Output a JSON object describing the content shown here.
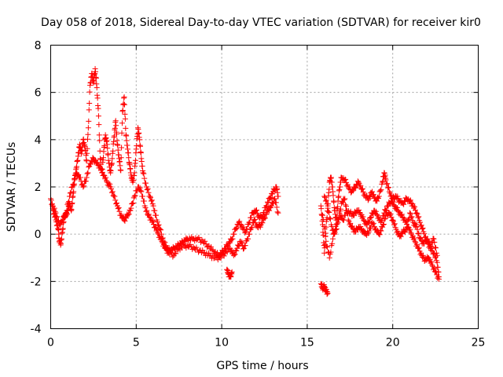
{
  "chart_data": {
    "type": "scatter",
    "title": "Day 058 of 2018, Sidereal Day-to-day VTEC variation (SDTVAR) for receiver kir0",
    "xlabel": "GPS time / hours",
    "ylabel": "SDTVAR / TECUs",
    "xlim": [
      0,
      25
    ],
    "ylim": [
      -4,
      8
    ],
    "xticks": [
      0,
      5,
      10,
      15,
      20,
      25
    ],
    "yticks": [
      -4,
      -2,
      0,
      2,
      4,
      6,
      8
    ],
    "grid": true,
    "marker": "+",
    "color": "#ff0000",
    "series": [
      {
        "name": "SDTVAR",
        "segments": [
          [
            [
              0.0,
              1.5
            ],
            [
              0.15,
              1.0
            ],
            [
              0.3,
              0.6
            ],
            [
              0.45,
              0.2
            ],
            [
              0.5,
              -0.3
            ],
            [
              0.6,
              -0.4
            ],
            [
              0.7,
              0.2
            ],
            [
              0.8,
              0.8
            ],
            [
              0.9,
              0.8
            ],
            [
              1.0,
              1.0
            ],
            [
              1.1,
              1.3
            ],
            [
              1.2,
              1.0
            ],
            [
              1.3,
              1.6
            ],
            [
              1.4,
              2.3
            ],
            [
              1.5,
              2.8
            ],
            [
              1.6,
              3.3
            ],
            [
              1.7,
              3.8
            ],
            [
              1.8,
              3.4
            ],
            [
              1.9,
              4.0
            ],
            [
              2.0,
              3.7
            ],
            [
              2.1,
              3.1
            ],
            [
              2.2,
              4.5
            ],
            [
              2.3,
              6.3
            ],
            [
              2.4,
              6.8
            ],
            [
              2.5,
              6.4
            ],
            [
              2.6,
              7.0
            ],
            [
              2.7,
              6.2
            ],
            [
              2.8,
              5.0
            ],
            [
              2.9,
              3.2
            ],
            [
              3.0,
              2.6
            ],
            [
              3.1,
              3.5
            ],
            [
              3.2,
              4.2
            ],
            [
              3.3,
              3.8
            ],
            [
              3.4,
              3.0
            ],
            [
              3.5,
              2.6
            ],
            [
              3.6,
              3.2
            ],
            [
              3.7,
              4.1
            ],
            [
              3.8,
              4.8
            ],
            [
              3.9,
              3.8
            ],
            [
              4.0,
              3.2
            ],
            [
              4.1,
              2.7
            ],
            [
              4.2,
              5.2
            ],
            [
              4.3,
              5.8
            ],
            [
              4.4,
              4.2
            ],
            [
              4.5,
              3.6
            ],
            [
              4.6,
              3.0
            ],
            [
              4.7,
              2.5
            ],
            [
              4.8,
              2.2
            ],
            [
              4.9,
              2.6
            ],
            [
              5.0,
              3.6
            ],
            [
              5.1,
              4.5
            ],
            [
              5.2,
              4.0
            ],
            [
              5.3,
              3.2
            ],
            [
              5.4,
              2.6
            ],
            [
              5.6,
              2.0
            ],
            [
              5.8,
              1.6
            ],
            [
              6.0,
              1.2
            ],
            [
              6.2,
              0.6
            ],
            [
              6.4,
              0.2
            ],
            [
              6.6,
              -0.3
            ],
            [
              6.8,
              -0.6
            ],
            [
              7.0,
              -0.7
            ],
            [
              7.2,
              -0.6
            ],
            [
              7.4,
              -0.5
            ],
            [
              7.6,
              -0.4
            ],
            [
              7.8,
              -0.3
            ],
            [
              8.0,
              -0.2
            ],
            [
              8.3,
              -0.2
            ],
            [
              8.6,
              -0.2
            ],
            [
              8.9,
              -0.3
            ],
            [
              9.2,
              -0.5
            ],
            [
              9.5,
              -0.7
            ],
            [
              9.8,
              -0.9
            ],
            [
              10.0,
              -0.8
            ],
            [
              10.2,
              -0.6
            ],
            [
              10.4,
              -0.4
            ],
            [
              10.6,
              -0.2
            ],
            [
              10.8,
              0.2
            ],
            [
              11.0,
              0.5
            ],
            [
              11.2,
              0.3
            ],
            [
              11.4,
              0.1
            ],
            [
              11.6,
              0.5
            ],
            [
              11.8,
              0.9
            ],
            [
              12.0,
              1.0
            ],
            [
              12.2,
              0.7
            ],
            [
              12.4,
              0.8
            ],
            [
              12.6,
              1.2
            ],
            [
              12.8,
              1.5
            ],
            [
              13.0,
              1.8
            ],
            [
              13.2,
              2.0
            ],
            [
              13.3,
              1.6
            ]
          ],
          [
            [
              0.1,
              1.2
            ],
            [
              0.3,
              0.9
            ],
            [
              0.5,
              0.4
            ],
            [
              0.7,
              0.6
            ],
            [
              0.9,
              0.9
            ],
            [
              1.1,
              1.6
            ],
            [
              1.3,
              2.1
            ],
            [
              1.5,
              2.6
            ],
            [
              1.7,
              2.4
            ],
            [
              1.9,
              2.0
            ],
            [
              2.1,
              2.4
            ],
            [
              2.3,
              3.0
            ],
            [
              2.5,
              3.2
            ],
            [
              2.7,
              3.0
            ],
            [
              2.9,
              2.8
            ],
            [
              3.1,
              2.5
            ],
            [
              3.3,
              2.2
            ],
            [
              3.5,
              2.0
            ],
            [
              3.7,
              1.6
            ],
            [
              3.9,
              1.2
            ],
            [
              4.1,
              0.8
            ],
            [
              4.3,
              0.6
            ],
            [
              4.5,
              0.8
            ],
            [
              4.7,
              1.1
            ],
            [
              4.9,
              1.6
            ],
            [
              5.1,
              2.0
            ],
            [
              5.3,
              1.8
            ],
            [
              5.5,
              1.2
            ],
            [
              5.7,
              0.8
            ],
            [
              5.9,
              0.6
            ],
            [
              6.1,
              0.3
            ],
            [
              6.3,
              0.0
            ],
            [
              6.5,
              -0.3
            ],
            [
              6.7,
              -0.6
            ],
            [
              6.9,
              -0.8
            ],
            [
              7.2,
              -0.9
            ],
            [
              7.5,
              -0.6
            ],
            [
              7.8,
              -0.5
            ],
            [
              8.1,
              -0.5
            ],
            [
              8.4,
              -0.6
            ],
            [
              8.7,
              -0.7
            ],
            [
              9.0,
              -0.8
            ],
            [
              9.3,
              -0.9
            ],
            [
              9.6,
              -1.0
            ],
            [
              9.9,
              -1.0
            ],
            [
              10.2,
              -0.8
            ],
            [
              10.5,
              -0.6
            ],
            [
              10.7,
              -0.9
            ],
            [
              10.9,
              -0.6
            ],
            [
              11.1,
              -0.3
            ],
            [
              11.3,
              -0.6
            ],
            [
              11.5,
              -0.2
            ],
            [
              11.7,
              0.2
            ],
            [
              11.9,
              0.6
            ],
            [
              12.1,
              0.3
            ],
            [
              12.3,
              0.4
            ],
            [
              12.5,
              0.7
            ],
            [
              12.7,
              1.0
            ],
            [
              12.9,
              1.2
            ],
            [
              13.1,
              1.5
            ],
            [
              13.3,
              0.9
            ]
          ],
          [
            [
              10.3,
              -1.5
            ],
            [
              10.4,
              -1.7
            ],
            [
              10.5,
              -1.8
            ],
            [
              10.6,
              -1.6
            ]
          ],
          [
            [
              15.8,
              1.2
            ],
            [
              15.9,
              0.4
            ],
            [
              16.0,
              -0.8
            ],
            [
              16.1,
              0.3
            ],
            [
              16.2,
              1.1
            ],
            [
              16.3,
              2.2
            ],
            [
              16.4,
              2.4
            ],
            [
              16.5,
              1.8
            ],
            [
              16.6,
              1.0
            ],
            [
              16.7,
              0.6
            ],
            [
              16.8,
              1.4
            ],
            [
              16.9,
              2.0
            ],
            [
              17.0,
              2.4
            ],
            [
              17.2,
              2.3
            ],
            [
              17.4,
              2.0
            ],
            [
              17.6,
              1.8
            ],
            [
              17.8,
              2.0
            ],
            [
              18.0,
              2.2
            ],
            [
              18.2,
              1.9
            ],
            [
              18.4,
              1.6
            ],
            [
              18.6,
              1.5
            ],
            [
              18.8,
              1.8
            ],
            [
              19.0,
              1.4
            ],
            [
              19.2,
              1.6
            ],
            [
              19.4,
              2.2
            ],
            [
              19.5,
              2.6
            ],
            [
              19.6,
              2.3
            ],
            [
              19.8,
              1.8
            ],
            [
              20.0,
              1.5
            ],
            [
              20.2,
              1.6
            ],
            [
              20.4,
              1.4
            ],
            [
              20.6,
              1.3
            ],
            [
              20.8,
              1.5
            ],
            [
              21.0,
              1.4
            ],
            [
              21.2,
              1.2
            ],
            [
              21.4,
              0.9
            ],
            [
              21.6,
              0.5
            ],
            [
              21.8,
              0.1
            ],
            [
              22.0,
              -0.3
            ],
            [
              22.2,
              -0.6
            ],
            [
              22.4,
              -0.8
            ],
            [
              22.6,
              -1.2
            ],
            [
              22.7,
              -1.8
            ]
          ],
          [
            [
              15.9,
              0.8
            ],
            [
              16.1,
              -0.3
            ],
            [
              16.3,
              -1.0
            ],
            [
              16.5,
              -0.2
            ],
            [
              16.7,
              0.4
            ],
            [
              16.9,
              0.8
            ],
            [
              17.1,
              0.6
            ],
            [
              17.3,
              1.0
            ],
            [
              17.5,
              0.9
            ],
            [
              17.7,
              0.8
            ],
            [
              17.9,
              1.0
            ],
            [
              18.1,
              0.9
            ],
            [
              18.3,
              0.6
            ],
            [
              18.5,
              0.4
            ],
            [
              18.7,
              0.7
            ],
            [
              18.9,
              1.0
            ],
            [
              19.1,
              0.8
            ],
            [
              19.3,
              0.5
            ],
            [
              19.5,
              0.9
            ],
            [
              19.7,
              1.2
            ],
            [
              19.9,
              1.4
            ],
            [
              20.1,
              1.2
            ],
            [
              20.3,
              1.0
            ],
            [
              20.5,
              0.8
            ],
            [
              20.7,
              0.6
            ],
            [
              20.9,
              0.3
            ],
            [
              21.1,
              0.0
            ],
            [
              21.3,
              -0.3
            ],
            [
              21.5,
              -0.6
            ],
            [
              21.7,
              -0.9
            ],
            [
              21.9,
              -1.1
            ],
            [
              22.1,
              -1.0
            ],
            [
              22.3,
              -1.3
            ],
            [
              22.5,
              -1.6
            ],
            [
              22.7,
              -1.9
            ]
          ],
          [
            [
              16.0,
              1.6
            ],
            [
              16.2,
              1.2
            ],
            [
              16.4,
              0.4
            ],
            [
              16.6,
              0.0
            ],
            [
              16.8,
              0.5
            ],
            [
              17.0,
              1.3
            ],
            [
              17.2,
              1.5
            ],
            [
              17.4,
              0.6
            ],
            [
              17.6,
              0.3
            ],
            [
              17.8,
              0.1
            ],
            [
              18.0,
              0.3
            ],
            [
              18.2,
              0.2
            ],
            [
              18.4,
              0.0
            ],
            [
              18.6,
              0.1
            ],
            [
              18.8,
              0.5
            ],
            [
              19.0,
              0.2
            ],
            [
              19.2,
              0.0
            ],
            [
              19.4,
              0.3
            ],
            [
              19.6,
              0.8
            ],
            [
              19.8,
              0.9
            ],
            [
              20.0,
              0.6
            ],
            [
              20.2,
              0.2
            ],
            [
              20.4,
              -0.1
            ],
            [
              20.6,
              0.1
            ],
            [
              20.8,
              0.2
            ],
            [
              21.0,
              0.9
            ],
            [
              21.2,
              0.5
            ],
            [
              21.4,
              0.3
            ],
            [
              21.6,
              -0.2
            ],
            [
              21.8,
              -0.4
            ],
            [
              22.0,
              -0.2
            ],
            [
              22.2,
              -0.5
            ],
            [
              22.4,
              -0.2
            ],
            [
              22.6,
              -0.9
            ]
          ],
          [
            [
              15.8,
              -2.1
            ],
            [
              15.9,
              -2.3
            ],
            [
              16.0,
              -2.2
            ],
            [
              16.1,
              -2.4
            ],
            [
              16.2,
              -2.5
            ]
          ]
        ]
      }
    ]
  }
}
